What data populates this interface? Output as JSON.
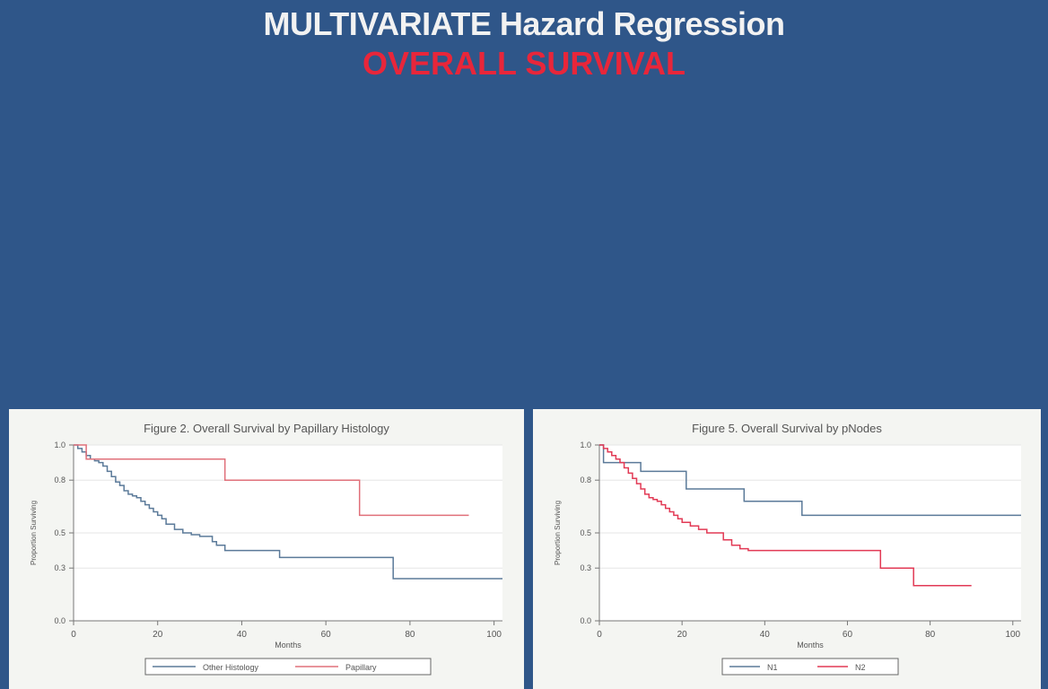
{
  "slide": {
    "title": "MULTIVARIATE Hazard Regression",
    "subtitle": "OVERALL SURVIVAL"
  },
  "colors": {
    "background": "#2f5689",
    "title": "#f2f2f2",
    "subtitle": "#e8263a",
    "panel": "#f4f5f2",
    "series_blue": "#5b7a99",
    "series_red": "#e0707a",
    "series_red2": "#e23a55"
  },
  "chart_data": [
    {
      "type": "line",
      "step": true,
      "title": "Figure 2. Overall Survival by Papillary Histology",
      "xlabel": "Months",
      "ylabel": "Proportion Surviving",
      "xlim": [
        0,
        102
      ],
      "ylim": [
        0,
        1.0
      ],
      "xticks": [
        0,
        20,
        40,
        60,
        80,
        100
      ],
      "yticks": [
        0.0,
        0.3,
        0.5,
        0.8,
        1.0
      ],
      "ytick_labels": [
        "0.0",
        "0.3",
        "0.5",
        "0.8",
        "1.0"
      ],
      "grid": true,
      "legend": "bottom",
      "series": [
        {
          "name": "Other Histology",
          "color": "#5b7a99",
          "x": [
            0,
            1,
            2,
            3,
            4,
            5,
            6,
            7,
            8,
            9,
            10,
            11,
            12,
            13,
            14,
            15,
            16,
            17,
            18,
            19,
            20,
            21,
            22,
            24,
            26,
            28,
            30,
            33,
            34,
            36,
            49,
            76,
            102
          ],
          "y": [
            1.0,
            0.98,
            0.96,
            0.94,
            0.92,
            0.91,
            0.9,
            0.88,
            0.85,
            0.82,
            0.79,
            0.77,
            0.74,
            0.72,
            0.71,
            0.7,
            0.68,
            0.66,
            0.64,
            0.62,
            0.6,
            0.58,
            0.55,
            0.52,
            0.5,
            0.49,
            0.48,
            0.45,
            0.43,
            0.4,
            0.36,
            0.24,
            0.24
          ]
        },
        {
          "name": "Papillary",
          "color": "#e0707a",
          "x": [
            0,
            3,
            36,
            68,
            94
          ],
          "y": [
            1.0,
            0.92,
            0.8,
            0.6,
            0.6
          ]
        }
      ]
    },
    {
      "type": "line",
      "step": true,
      "title": "Figure 5. Overall Survival by pNodes",
      "xlabel": "Months",
      "ylabel": "Proportion Surviving",
      "xlim": [
        0,
        102
      ],
      "ylim": [
        0,
        1.0
      ],
      "xticks": [
        0,
        20,
        40,
        60,
        80,
        100
      ],
      "yticks": [
        0.0,
        0.3,
        0.5,
        0.8,
        1.0
      ],
      "ytick_labels": [
        "0.0",
        "0.3",
        "0.5",
        "0.8",
        "1.0"
      ],
      "grid": true,
      "legend": "bottom",
      "series": [
        {
          "name": "N1",
          "color": "#5b7a99",
          "x": [
            0,
            1,
            10,
            21,
            35,
            49,
            102
          ],
          "y": [
            1.0,
            0.9,
            0.85,
            0.75,
            0.68,
            0.6,
            0.6
          ]
        },
        {
          "name": "N2",
          "color": "#e23a55",
          "x": [
            0,
            1,
            2,
            3,
            4,
            5,
            6,
            7,
            8,
            9,
            10,
            11,
            12,
            13,
            14,
            15,
            16,
            17,
            18,
            19,
            20,
            22,
            24,
            26,
            30,
            32,
            34,
            36,
            68,
            76,
            90
          ],
          "y": [
            1.0,
            0.98,
            0.96,
            0.94,
            0.92,
            0.9,
            0.87,
            0.84,
            0.81,
            0.78,
            0.75,
            0.72,
            0.7,
            0.69,
            0.68,
            0.66,
            0.64,
            0.62,
            0.6,
            0.58,
            0.56,
            0.54,
            0.52,
            0.5,
            0.46,
            0.43,
            0.41,
            0.4,
            0.3,
            0.2,
            0.2
          ]
        }
      ]
    }
  ]
}
